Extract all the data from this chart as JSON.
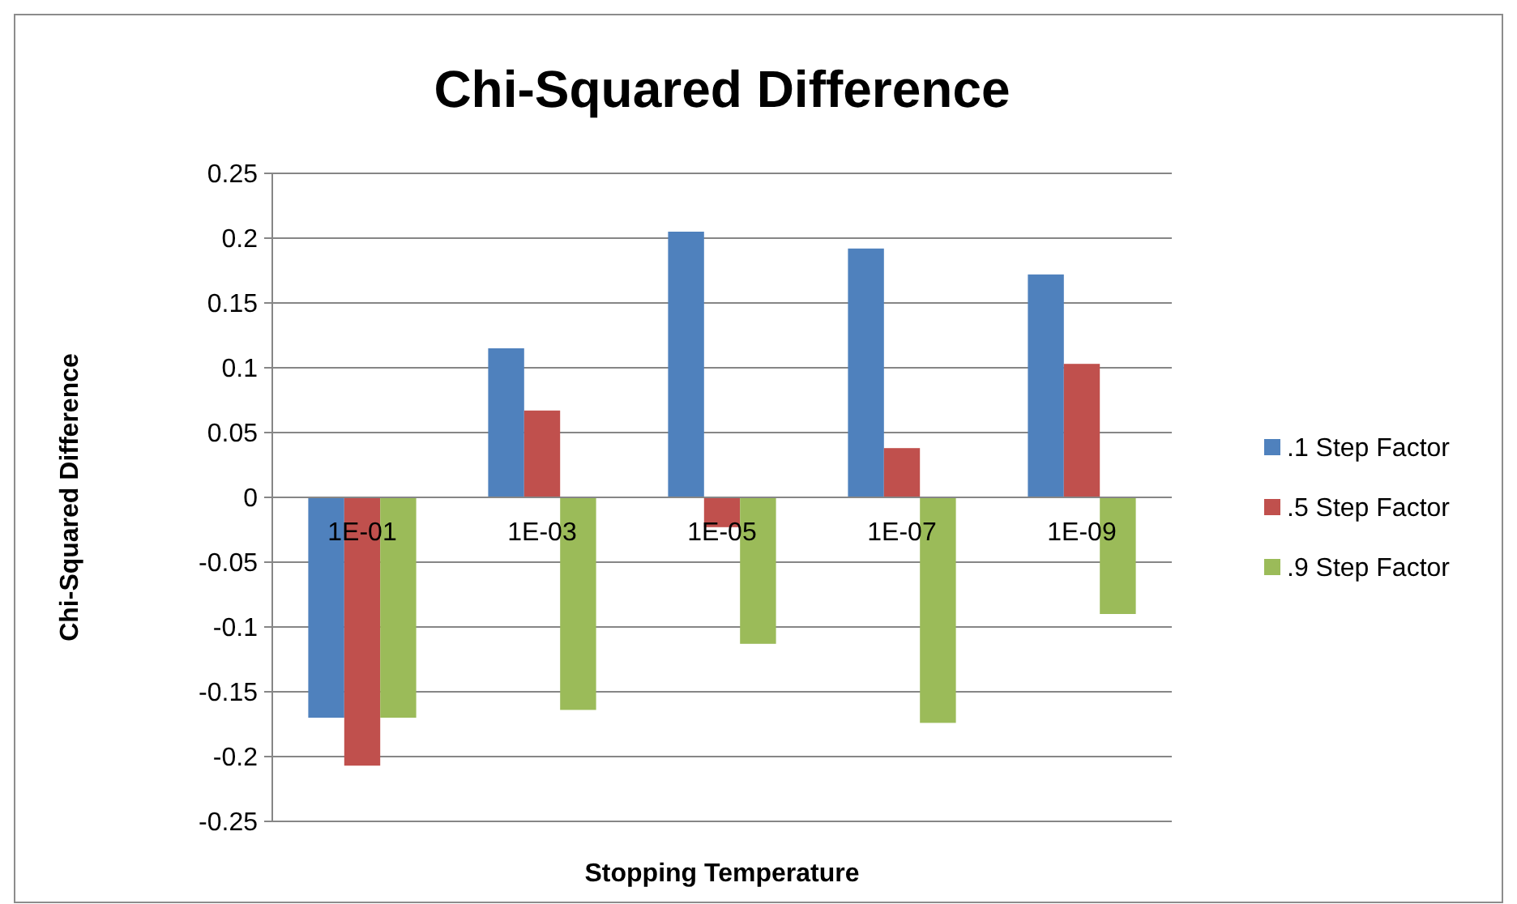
{
  "chart_data": {
    "type": "bar",
    "title": "Chi-Squared Difference",
    "xlabel": "Stopping Temperature",
    "ylabel": "Chi-Squared Difference",
    "categories": [
      "1E-01",
      "1E-03",
      "1E-05",
      "1E-07",
      "1E-09"
    ],
    "series": [
      {
        "name": ".1 Step Factor",
        "color": "#4f81bd",
        "values": [
          -0.17,
          0.115,
          0.205,
          0.192,
          0.172
        ]
      },
      {
        "name": ".5 Step Factor",
        "color": "#c0504d",
        "values": [
          -0.207,
          0.067,
          -0.023,
          0.038,
          0.103
        ]
      },
      {
        "name": ".9 Step Factor",
        "color": "#9bbb59",
        "values": [
          -0.17,
          -0.164,
          -0.113,
          -0.174,
          -0.09
        ]
      }
    ],
    "ylim": [
      -0.25,
      0.25
    ],
    "yticks": [
      -0.25,
      -0.2,
      -0.15,
      -0.1,
      -0.05,
      0,
      0.05,
      0.1,
      0.15,
      0.2,
      0.25
    ],
    "grid": "y",
    "legend": "right"
  }
}
